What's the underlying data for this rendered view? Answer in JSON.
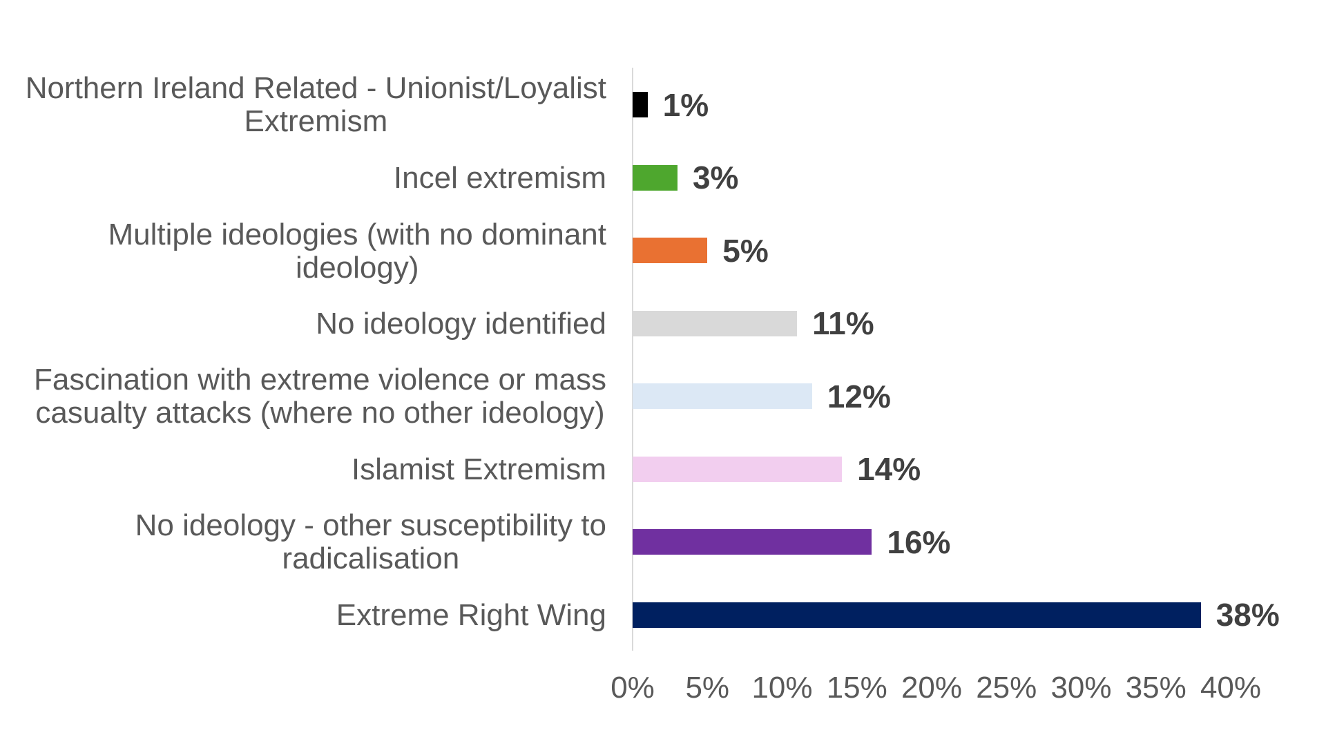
{
  "chart_data": {
    "type": "bar",
    "orientation": "horizontal",
    "title": "",
    "xlabel": "",
    "ylabel": "",
    "xlim": [
      0,
      40
    ],
    "grid": false,
    "legend": null,
    "categories": [
      "Northern Ireland Related - Unionist/Loyalist Extremism",
      "Incel extremism",
      "Multiple ideologies (with no dominant ideology)",
      "No ideology identified",
      "Fascination with extreme violence or mass casualty attacks (where no other ideology)",
      "Islamist Extremism",
      "No ideology - other susceptibility to radicalisation",
      "Extreme Right Wing"
    ],
    "values": [
      1,
      3,
      5,
      11,
      12,
      14,
      16,
      38
    ],
    "value_labels": [
      "1%",
      "3%",
      "5%",
      "11%",
      "12%",
      "14%",
      "16%",
      "38%"
    ],
    "colors": [
      "#000000",
      "#4EA72E",
      "#E97132",
      "#D9D9D9",
      "#DCE8F5",
      "#F2CEEF",
      "#7030A0",
      "#002060"
    ],
    "x_ticks": [
      "0%",
      "5%",
      "10%",
      "15%",
      "20%",
      "25%",
      "30%",
      "35%",
      "40%"
    ]
  },
  "bars": [
    {
      "label_lines": [
        "Northern Ireland Related - Unionist/Loyalist",
        "Extremism"
      ],
      "value": 1,
      "value_label": "1%",
      "color": "#000000"
    },
    {
      "label_lines": [
        "Incel extremism"
      ],
      "value": 3,
      "value_label": "3%",
      "color": "#4EA72E"
    },
    {
      "label_lines": [
        "Multiple ideologies (with no dominant",
        "ideology)"
      ],
      "value": 5,
      "value_label": "5%",
      "color": "#E97132"
    },
    {
      "label_lines": [
        "No ideology identified"
      ],
      "value": 11,
      "value_label": "11%",
      "color": "#D9D9D9"
    },
    {
      "label_lines": [
        "Fascination with extreme violence or mass",
        "casualty attacks (where no other ideology)"
      ],
      "value": 12,
      "value_label": "12%",
      "color": "#DCE8F5"
    },
    {
      "label_lines": [
        "Islamist Extremism"
      ],
      "value": 14,
      "value_label": "14%",
      "color": "#F2CEEF"
    },
    {
      "label_lines": [
        "No ideology - other susceptibility to",
        "radicalisation"
      ],
      "value": 16,
      "value_label": "16%",
      "color": "#7030A0"
    },
    {
      "label_lines": [
        "Extreme Right Wing"
      ],
      "value": 38,
      "value_label": "38%",
      "color": "#002060"
    }
  ],
  "axis": {
    "ticks": [
      "0%",
      "5%",
      "10%",
      "15%",
      "20%",
      "25%",
      "30%",
      "35%",
      "40%"
    ],
    "tick_values": [
      0,
      5,
      10,
      15,
      20,
      25,
      30,
      35,
      40
    ],
    "line_color": "#D9D9D9"
  }
}
